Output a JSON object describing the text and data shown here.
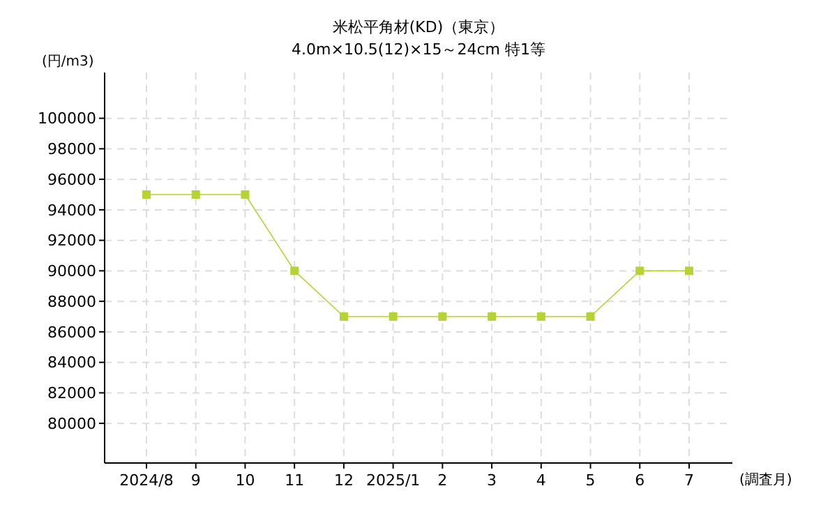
{
  "chart_data": {
    "type": "line",
    "title": "米松平角材(KD)（東京）",
    "subtitle": "4.0m×10.5(12)×15～24cm 特1等",
    "ylabel": "(円/m3)",
    "xlabel": "(調査月)",
    "categories": [
      "2024/8",
      "9",
      "10",
      "11",
      "12",
      "2025/1",
      "2",
      "3",
      "4",
      "5",
      "6",
      "7"
    ],
    "series": [
      {
        "color": "#b5d334",
        "values": [
          95000,
          95000,
          95000,
          90000,
          87000,
          87000,
          87000,
          87000,
          87000,
          87000,
          90000,
          90000
        ]
      }
    ],
    "ylim": [
      77400,
      103000
    ],
    "yticks": [
      80000,
      82000,
      84000,
      86000,
      88000,
      90000,
      92000,
      94000,
      96000,
      98000,
      100000
    ],
    "grid": true,
    "marker": "square",
    "line_style": "solid"
  }
}
